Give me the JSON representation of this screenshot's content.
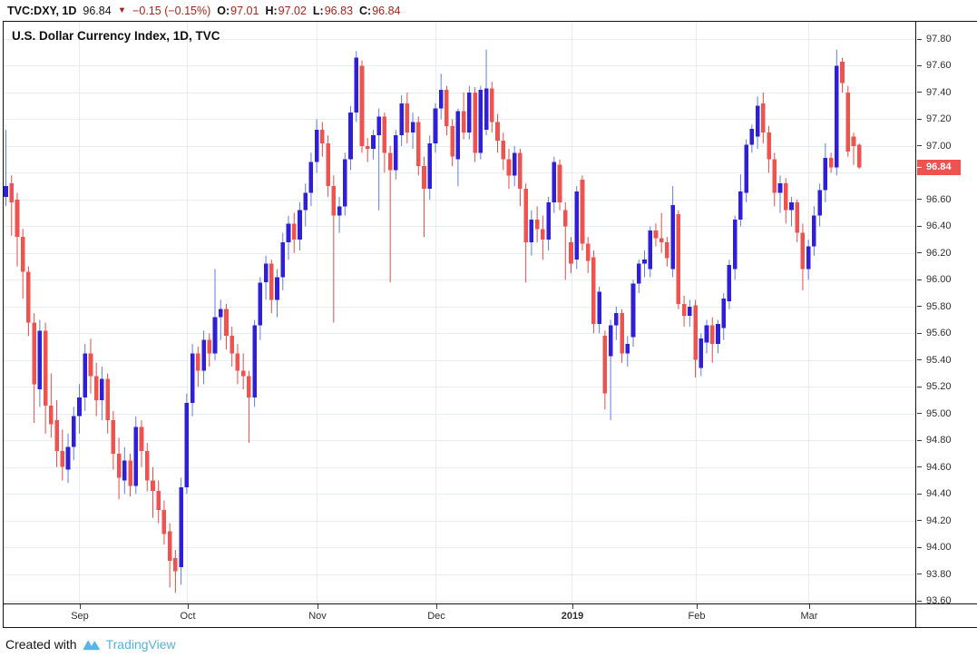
{
  "header": {
    "symbol_interval": "TVC:DXY, 1D",
    "last_price": "96.84",
    "direction_icon": "▼",
    "change": "−0.15 (−0.15%)",
    "ohlc": [
      {
        "label": "O:",
        "value": "97.01"
      },
      {
        "label": "H:",
        "value": "97.02"
      },
      {
        "label": "L:",
        "value": "96.83"
      },
      {
        "label": "C:",
        "value": "96.84"
      }
    ]
  },
  "legend": {
    "title": "U.S. Dollar Currency Index, 1D, TVC"
  },
  "price_axis": {
    "badge": "96.84",
    "ticks": [
      "97.80",
      "97.60",
      "97.40",
      "97.20",
      "97.00",
      "96.80",
      "96.60",
      "96.40",
      "96.20",
      "96.00",
      "95.80",
      "95.60",
      "95.40",
      "95.20",
      "95.00",
      "94.80",
      "94.60",
      "94.40",
      "94.20",
      "94.00",
      "93.80",
      "93.60"
    ]
  },
  "time_axis": {
    "ticks": [
      {
        "label": "Sep",
        "index": 13,
        "bold": false
      },
      {
        "label": "Oct",
        "index": 32,
        "bold": false
      },
      {
        "label": "Nov",
        "index": 55,
        "bold": false
      },
      {
        "label": "Dec",
        "index": 76,
        "bold": false
      },
      {
        "label": "2019",
        "index": 100,
        "bold": true
      },
      {
        "label": "Feb",
        "index": 122,
        "bold": false
      },
      {
        "label": "Mar",
        "index": 142,
        "bold": false
      }
    ]
  },
  "attribution": {
    "prefix": "Created with",
    "brand": "TradingView"
  },
  "colors": {
    "up_body": "#2f1fd6",
    "up_wick": "#5e7ce2",
    "down_body": "#ef5350",
    "down_wick": "#e94a46",
    "grid": "#e6edf4",
    "badge_bg": "#ef5350",
    "badge_text": "#ffffff",
    "header_red": "#a8221a",
    "brand_blue": "#54b1e2",
    "axis_text": "#2e2e2e"
  },
  "chart_data": {
    "type": "candlestick",
    "title": "U.S. Dollar Currency Index, 1D, TVC",
    "symbol": "TVC:DXY",
    "interval": "1D",
    "ylim": [
      93.6,
      97.8
    ],
    "y_tick_step": 0.2,
    "x_tick_labels": [
      "Sep",
      "Oct",
      "Nov",
      "Dec",
      "2019",
      "Feb",
      "Mar"
    ],
    "last_candle": {
      "open": "97.01",
      "high": "97.02",
      "low": "96.83",
      "close": "96.84"
    },
    "candles": [
      [
        96.62,
        97.12,
        96.55,
        96.7
      ],
      [
        96.72,
        96.78,
        96.33,
        96.58
      ],
      [
        96.6,
        96.65,
        96.1,
        96.32
      ],
      [
        96.32,
        96.38,
        95.86,
        96.06
      ],
      [
        96.06,
        96.1,
        95.58,
        95.68
      ],
      [
        95.68,
        95.75,
        94.93,
        95.22
      ],
      [
        95.18,
        95.7,
        95.05,
        95.62
      ],
      [
        95.62,
        95.68,
        94.85,
        95.06
      ],
      [
        95.06,
        95.3,
        94.82,
        94.92
      ],
      [
        94.95,
        95.1,
        94.6,
        94.72
      ],
      [
        94.72,
        94.88,
        94.5,
        94.6
      ],
      [
        94.58,
        94.85,
        94.48,
        94.75
      ],
      [
        94.75,
        95.05,
        94.65,
        94.98
      ],
      [
        94.98,
        95.22,
        94.85,
        95.12
      ],
      [
        95.12,
        95.52,
        95.02,
        95.45
      ],
      [
        95.45,
        95.56,
        95.15,
        95.28
      ],
      [
        95.28,
        95.38,
        94.98,
        95.1
      ],
      [
        95.1,
        95.35,
        94.95,
        95.26
      ],
      [
        95.26,
        95.3,
        94.85,
        94.95
      ],
      [
        94.95,
        95.02,
        94.58,
        94.7
      ],
      [
        94.7,
        94.82,
        94.36,
        94.52
      ],
      [
        94.5,
        94.75,
        94.4,
        94.65
      ],
      [
        94.65,
        94.7,
        94.38,
        94.46
      ],
      [
        94.46,
        94.98,
        94.4,
        94.9
      ],
      [
        94.9,
        94.95,
        94.6,
        94.72
      ],
      [
        94.72,
        94.78,
        94.42,
        94.5
      ],
      [
        94.5,
        94.6,
        94.22,
        94.42
      ],
      [
        94.42,
        94.5,
        94.18,
        94.28
      ],
      [
        94.28,
        94.35,
        94.02,
        94.1
      ],
      [
        94.12,
        94.18,
        93.7,
        93.9
      ],
      [
        93.92,
        93.98,
        93.66,
        93.82
      ],
      [
        93.85,
        94.52,
        93.72,
        94.45
      ],
      [
        94.45,
        95.15,
        94.4,
        95.08
      ],
      [
        95.08,
        95.52,
        94.98,
        95.45
      ],
      [
        95.45,
        95.5,
        95.2,
        95.32
      ],
      [
        95.32,
        95.62,
        95.22,
        95.55
      ],
      [
        95.55,
        95.6,
        95.35,
        95.45
      ],
      [
        95.45,
        96.08,
        95.4,
        95.72
      ],
      [
        95.72,
        95.85,
        95.55,
        95.78
      ],
      [
        95.78,
        95.82,
        95.48,
        95.58
      ],
      [
        95.58,
        95.65,
        95.35,
        95.45
      ],
      [
        95.45,
        95.52,
        95.22,
        95.32
      ],
      [
        95.32,
        95.45,
        95.18,
        95.28
      ],
      [
        95.28,
        95.32,
        94.78,
        95.12
      ],
      [
        95.12,
        95.7,
        95.05,
        95.66
      ],
      [
        95.66,
        96.02,
        95.55,
        95.98
      ],
      [
        95.98,
        96.18,
        95.85,
        96.12
      ],
      [
        96.12,
        96.15,
        95.75,
        95.85
      ],
      [
        95.85,
        96.08,
        95.72,
        96.02
      ],
      [
        96.02,
        96.35,
        95.92,
        96.28
      ],
      [
        96.28,
        96.48,
        96.15,
        96.42
      ],
      [
        96.42,
        96.5,
        96.2,
        96.3
      ],
      [
        96.3,
        96.58,
        96.22,
        96.52
      ],
      [
        96.52,
        96.72,
        96.4,
        96.65
      ],
      [
        96.65,
        96.95,
        96.55,
        96.88
      ],
      [
        96.88,
        97.2,
        96.8,
        97.12
      ],
      [
        97.12,
        97.18,
        96.92,
        97.02
      ],
      [
        97.02,
        97.08,
        96.62,
        96.7
      ],
      [
        96.7,
        96.78,
        95.68,
        96.48
      ],
      [
        96.48,
        96.62,
        96.35,
        96.55
      ],
      [
        96.55,
        96.95,
        96.48,
        96.9
      ],
      [
        96.9,
        97.3,
        96.82,
        97.25
      ],
      [
        97.25,
        97.71,
        97.18,
        97.66
      ],
      [
        97.6,
        97.64,
        96.95,
        97.0
      ],
      [
        97.0,
        97.06,
        96.88,
        96.98
      ],
      [
        96.98,
        97.12,
        96.9,
        97.08
      ],
      [
        97.08,
        97.28,
        96.52,
        97.22
      ],
      [
        97.22,
        97.25,
        96.8,
        96.95
      ],
      [
        96.95,
        97.0,
        95.98,
        96.82
      ],
      [
        96.82,
        97.12,
        96.75,
        97.08
      ],
      [
        97.08,
        97.38,
        97.0,
        97.32
      ],
      [
        97.32,
        97.4,
        97.02,
        97.1
      ],
      [
        97.1,
        97.25,
        96.98,
        97.18
      ],
      [
        97.18,
        97.22,
        96.78,
        96.85
      ],
      [
        96.85,
        96.92,
        96.32,
        96.68
      ],
      [
        96.68,
        97.08,
        96.6,
        97.02
      ],
      [
        97.02,
        97.32,
        96.95,
        97.28
      ],
      [
        97.28,
        97.54,
        97.2,
        97.42
      ],
      [
        97.42,
        97.45,
        97.08,
        97.15
      ],
      [
        97.15,
        97.2,
        96.85,
        96.92
      ],
      [
        96.9,
        97.28,
        96.7,
        97.26
      ],
      [
        97.26,
        97.4,
        97.05,
        97.1
      ],
      [
        97.1,
        97.45,
        97.05,
        97.4
      ],
      [
        97.4,
        97.44,
        96.88,
        96.95
      ],
      [
        96.95,
        97.45,
        96.9,
        97.42
      ],
      [
        97.12,
        97.72,
        97.08,
        97.43
      ],
      [
        97.43,
        97.48,
        97.1,
        97.18
      ],
      [
        97.18,
        97.24,
        96.95,
        97.04
      ],
      [
        97.04,
        97.1,
        96.82,
        96.9
      ],
      [
        96.9,
        96.98,
        96.68,
        96.78
      ],
      [
        96.78,
        97.0,
        96.7,
        96.95
      ],
      [
        96.95,
        96.98,
        96.55,
        96.68
      ],
      [
        96.68,
        96.72,
        95.98,
        96.28
      ],
      [
        96.28,
        96.52,
        96.18,
        96.45
      ],
      [
        96.45,
        96.55,
        96.28,
        96.38
      ],
      [
        96.38,
        96.48,
        96.15,
        96.3
      ],
      [
        96.3,
        96.62,
        96.22,
        96.58
      ],
      [
        96.58,
        96.92,
        96.5,
        96.88
      ],
      [
        96.86,
        96.9,
        96.52,
        96.58
      ],
      [
        96.52,
        96.58,
        96.0,
        96.4
      ],
      [
        96.28,
        96.32,
        96.05,
        96.12
      ],
      [
        96.15,
        96.7,
        96.08,
        96.66
      ],
      [
        96.75,
        96.78,
        96.22,
        96.27
      ],
      [
        96.27,
        96.32,
        96.05,
        96.14
      ],
      [
        96.17,
        96.22,
        95.6,
        95.67
      ],
      [
        95.67,
        95.95,
        95.6,
        95.91
      ],
      [
        95.58,
        95.62,
        95.03,
        95.15
      ],
      [
        95.43,
        95.7,
        94.95,
        95.66
      ],
      [
        95.66,
        95.8,
        95.55,
        95.75
      ],
      [
        95.75,
        95.78,
        95.38,
        95.45
      ],
      [
        95.45,
        95.58,
        95.35,
        95.52
      ],
      [
        95.57,
        96.0,
        95.5,
        95.97
      ],
      [
        95.97,
        96.15,
        95.9,
        96.12
      ],
      [
        96.12,
        96.22,
        96.02,
        96.15
      ],
      [
        96.08,
        96.4,
        96.02,
        96.37
      ],
      [
        96.37,
        96.42,
        96.25,
        96.31
      ],
      [
        96.31,
        96.5,
        96.2,
        96.28
      ],
      [
        96.28,
        96.32,
        96.1,
        96.16
      ],
      [
        96.08,
        96.7,
        96.02,
        96.56
      ],
      [
        96.49,
        96.52,
        95.78,
        95.82
      ],
      [
        95.82,
        95.88,
        95.65,
        95.73
      ],
      [
        95.73,
        95.85,
        95.65,
        95.8
      ],
      [
        95.81,
        95.85,
        95.27,
        95.4
      ],
      [
        95.34,
        95.6,
        95.28,
        95.56
      ],
      [
        95.53,
        95.7,
        95.45,
        95.66
      ],
      [
        95.66,
        95.72,
        95.38,
        95.52
      ],
      [
        95.52,
        95.7,
        95.45,
        95.67
      ],
      [
        95.64,
        95.9,
        95.55,
        95.86
      ],
      [
        95.84,
        96.15,
        95.78,
        96.11
      ],
      [
        96.08,
        96.48,
        96.0,
        96.45
      ],
      [
        96.45,
        96.79,
        96.4,
        96.66
      ],
      [
        96.65,
        97.05,
        96.58,
        97.01
      ],
      [
        97.01,
        97.16,
        96.95,
        97.13
      ],
      [
        97.07,
        97.37,
        96.98,
        97.3
      ],
      [
        97.32,
        97.4,
        97.02,
        97.1
      ],
      [
        97.1,
        97.15,
        96.8,
        96.9
      ],
      [
        96.9,
        96.95,
        96.55,
        96.65
      ],
      [
        96.65,
        96.78,
        96.5,
        96.72
      ],
      [
        96.72,
        96.76,
        96.42,
        96.52
      ],
      [
        96.52,
        96.62,
        96.4,
        96.58
      ],
      [
        96.58,
        96.6,
        96.28,
        96.35
      ],
      [
        96.35,
        96.42,
        95.92,
        96.08
      ],
      [
        96.08,
        96.3,
        96.0,
        96.25
      ],
      [
        96.25,
        96.55,
        96.18,
        96.48
      ],
      [
        96.48,
        96.72,
        96.4,
        96.67
      ],
      [
        96.67,
        97.02,
        96.58,
        96.91
      ],
      [
        96.91,
        96.95,
        96.8,
        96.84
      ],
      [
        96.84,
        97.72,
        96.78,
        97.6
      ],
      [
        97.63,
        97.66,
        97.4,
        97.47
      ],
      [
        97.4,
        97.45,
        96.92,
        96.96
      ],
      [
        97.07,
        97.1,
        96.86,
        97.0
      ],
      [
        97.01,
        97.02,
        96.83,
        96.84
      ]
    ]
  }
}
